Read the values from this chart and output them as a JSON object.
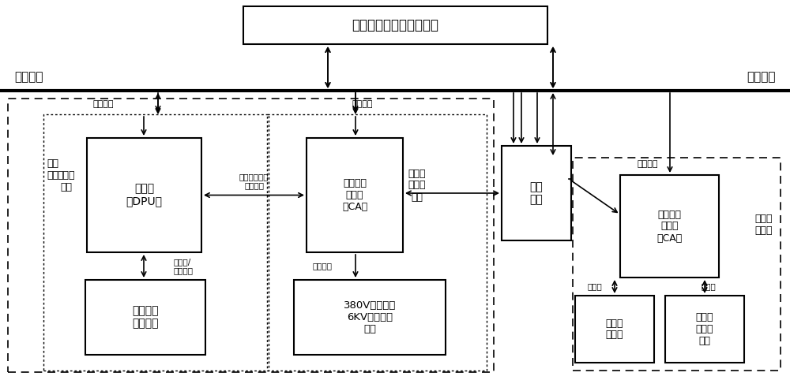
{
  "title": "热工电气一体化监控主站",
  "label_unit_group": "单元机组",
  "label_public_system": "公用系统",
  "label_comm_mgmt_left": "通信管理",
  "label_comm_mgmt_mid": "通信管理",
  "label_comm_mgmt_right": "通信管理",
  "label_unit_sub": "单元\n机组",
  "label_thermal_auto": "热工自\n动化",
  "label_controller": "控制器\n（DPU）",
  "label_fieldbus_master": "现场总线\n主站卡\n（CA）",
  "label_power_auto": "厂用电\n电气自\n动化",
  "label_isolation": "隔离\n装置",
  "label_field_instrument": "现场仪表\n执行机构",
  "label_380v": "380V测控保护\n6KV微机综保\n装置",
  "label_fieldbus_master2": "现场总线\n主站卡\n（CA）",
  "label_line_protection": "线路保\n护装置",
  "label_high_pressure": "高压测\n控保护\n装置",
  "label_boost_auto": "升压站\n自动化",
  "label_highspeed": "高速实时网络\n控制协议",
  "label_hardwire": "硬接线/\n现场总线",
  "label_fieldbus_down": "现场总线",
  "label_ethernet1": "以太网",
  "label_ethernet2": "以太网",
  "bg_color": "#ffffff"
}
